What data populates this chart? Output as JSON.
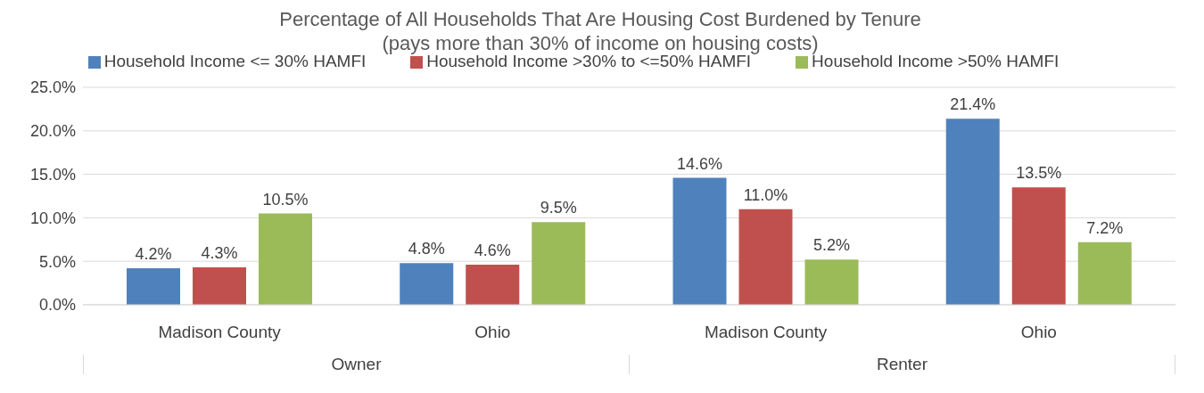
{
  "chart_data": {
    "type": "bar",
    "title": "Percentage of All Households That Are Housing Cost Burdened by Tenure",
    "subtitle": "(pays more than 30% of income on housing costs)",
    "categories": [
      "Madison County",
      "Ohio",
      "Madison County",
      "Ohio"
    ],
    "annotations": [
      "Owner",
      "Renter"
    ],
    "series": [
      {
        "name": "Household Income <= 30% HAMFI",
        "color": "#4f81bd",
        "values": [
          4.2,
          4.8,
          14.6,
          21.4
        ],
        "value_labels": [
          "4.2%",
          "4.8%",
          "14.6%",
          "21.4%"
        ]
      },
      {
        "name": "Household Income >30% to <=50% HAMFI",
        "color": "#c0504d",
        "values": [
          4.3,
          4.6,
          11.0,
          13.5
        ],
        "value_labels": [
          "4.3%",
          "4.6%",
          "11.0%",
          "13.5%"
        ]
      },
      {
        "name": "Household Income >50% HAMFI",
        "color": "#9bbb59",
        "values": [
          10.5,
          9.5,
          5.2,
          7.2
        ],
        "value_labels": [
          "10.5%",
          "9.5%",
          "5.2%",
          "7.2%"
        ]
      }
    ],
    "ylim": [
      0,
      25
    ],
    "yticks": [
      {
        "value": 0,
        "label": "0.0%"
      },
      {
        "value": 5,
        "label": "5.0%"
      },
      {
        "value": 10,
        "label": "10.0%"
      },
      {
        "value": 15,
        "label": "15.0%"
      },
      {
        "value": 20,
        "label": "20.0%"
      },
      {
        "value": 25,
        "label": "25.0%"
      }
    ],
    "grid": "y",
    "legend": "top"
  }
}
